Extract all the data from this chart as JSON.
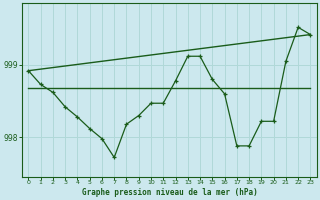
{
  "title": "Graphe pression niveau de la mer (hPa)",
  "background_color": "#cce8ee",
  "line_color": "#1a5c1a",
  "grid_color": "#b0d8d8",
  "ytick_color": "#1a5c1a",
  "xtick_color": "#1a5c1a",
  "label_color": "#1a5c1a",
  "xlim": [
    -0.5,
    23.5
  ],
  "ylim": [
    997.45,
    999.85
  ],
  "yticks": [
    998,
    999
  ],
  "xticks": [
    0,
    1,
    2,
    3,
    4,
    5,
    6,
    7,
    8,
    9,
    10,
    11,
    12,
    13,
    14,
    15,
    16,
    17,
    18,
    19,
    20,
    21,
    22,
    23
  ],
  "line1_x": [
    0,
    1,
    2,
    3,
    4,
    5,
    6,
    7,
    8,
    9,
    10,
    11,
    12,
    13,
    14,
    15,
    16,
    17,
    18,
    19,
    20,
    21,
    22,
    23
  ],
  "line1_y": [
    998.92,
    998.73,
    998.62,
    998.42,
    998.28,
    998.12,
    997.98,
    997.72,
    998.18,
    998.3,
    998.47,
    998.47,
    998.78,
    999.12,
    999.12,
    998.8,
    998.6,
    997.88,
    997.88,
    998.22,
    998.22,
    999.05,
    999.52,
    999.42
  ],
  "line2_x": [
    0,
    23
  ],
  "line2_y": [
    998.68,
    998.68
  ],
  "line3_x": [
    0,
    23
  ],
  "line3_y": [
    998.92,
    999.42
  ]
}
